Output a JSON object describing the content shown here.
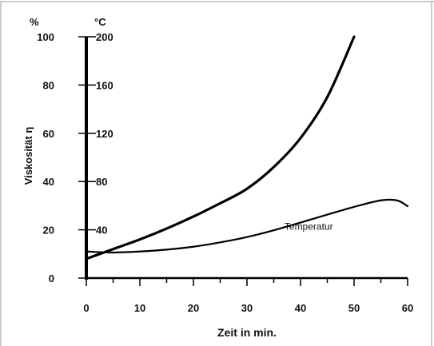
{
  "chart_data": {
    "type": "line",
    "xlabel": "Zeit in min.",
    "ylabel_left": "Viskosität η",
    "unit_left": "%",
    "unit_right": "°C",
    "xlim": [
      0,
      60
    ],
    "ylim_left": [
      0,
      100
    ],
    "ylim_right": [
      0,
      200
    ],
    "x_ticks": [
      "0",
      "10",
      "20",
      "30",
      "40",
      "50",
      "60"
    ],
    "y_left_ticks": [
      "0",
      "20",
      "40",
      "60",
      "80",
      "100"
    ],
    "y_right_ticks": [
      "40",
      "80",
      "120",
      "160",
      "200"
    ],
    "grid": false,
    "series": [
      {
        "axis": "left",
        "x": [
          0,
          5,
          10,
          15,
          20,
          25,
          30,
          35,
          40,
          45,
          50
        ],
        "values": [
          8,
          12,
          16,
          20.5,
          25.5,
          31,
          37,
          46,
          58,
          75,
          100
        ]
      },
      {
        "name": "Temperatur",
        "axis": "left",
        "x": [
          0,
          5,
          10,
          15,
          20,
          25,
          30,
          35,
          40,
          45,
          50,
          55,
          58,
          60
        ],
        "values": [
          11,
          10.6,
          11,
          11.8,
          13,
          14.8,
          17,
          19.8,
          23,
          26.3,
          29.5,
          32.2,
          32.2,
          29.8
        ],
        "label_at": [
          37,
          20
        ]
      }
    ]
  }
}
